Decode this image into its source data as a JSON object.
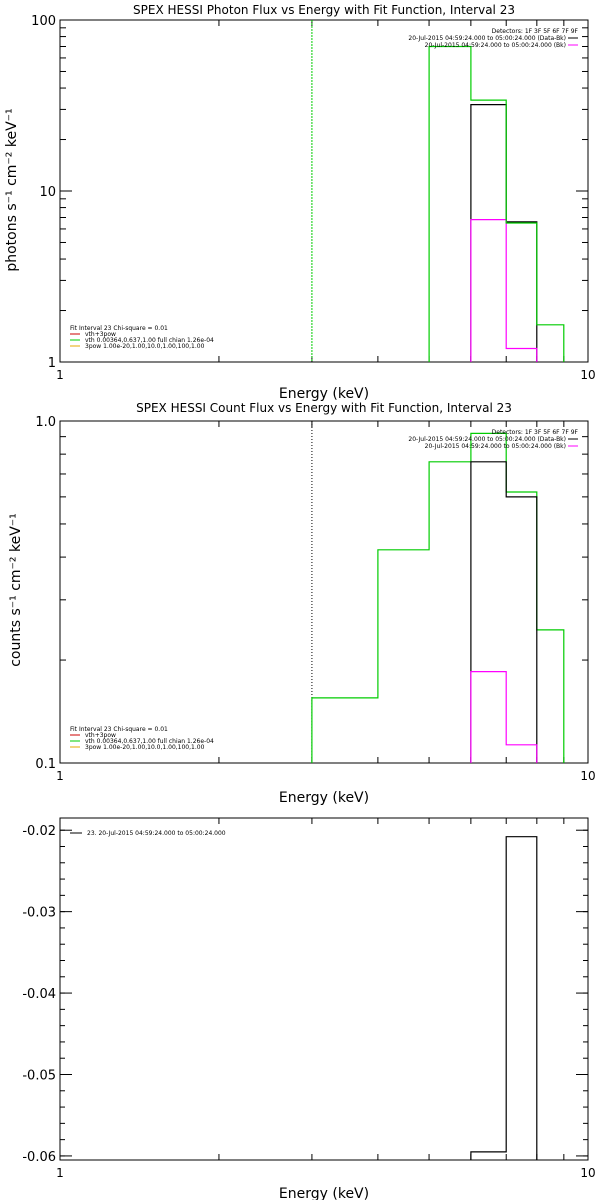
{
  "chart_data": [
    {
      "type": "line",
      "step": true,
      "title": "SPEX HESSI Photon Flux vs Energy with Fit Function, Interval 23",
      "xlabel": "Energy (keV)",
      "ylabel": "photons s⁻¹ cm⁻² keV⁻¹",
      "xscale": "log",
      "yscale": "log",
      "xlim": [
        1,
        10
      ],
      "ylim": [
        1,
        100
      ],
      "xticks": [
        {
          "v": 1,
          "label": "1"
        },
        {
          "v": 10,
          "label": "10"
        }
      ],
      "yticks": [
        {
          "v": 1,
          "label": "1"
        },
        {
          "v": 10,
          "label": "10"
        },
        {
          "v": 100,
          "label": "100"
        }
      ],
      "vline": {
        "x": 3.0,
        "color": "#00cc00",
        "style": "dashed"
      },
      "series": [
        {
          "color": "#000000",
          "x": [
            6.0,
            7.0,
            8.0
          ],
          "y": [
            32,
            6.6,
            1
          ]
        },
        {
          "color": "#ff00ff",
          "x": [
            6.0,
            7.0,
            8.0
          ],
          "y": [
            6.8,
            1.2,
            1
          ]
        },
        {
          "color": "#00cc00",
          "x": [
            5.0,
            6.0,
            7.0,
            8.0,
            9.0
          ],
          "y": [
            70,
            34,
            6.5,
            1.65,
            1
          ]
        }
      ],
      "legend_top": {
        "title": "Detectors: 1F 3F 5F 6F 7F 9F",
        "entries": [
          {
            "text": "20-Jul-2015 04:59:24.000 to 05:00:24.000 (Data-Bk)",
            "color": "#000000"
          },
          {
            "text": "20-Jul-2015 04:59:24.000 to 05:00:24.000 (Bk)",
            "color": "#ff00ff"
          }
        ]
      },
      "legend_bottom": {
        "title": "Fit Interval 23   Chi-square = 0.01",
        "entries": [
          {
            "text": "vth+3pow",
            "color": "#cc0000"
          },
          {
            "text": "vth 0.00364,0.637,1.00  full chian 1.26e-04",
            "color": "#00cc00"
          },
          {
            "text": "3pow 1.00e-20,1.00,10.0,1.00,100,1.00",
            "color": "#e6a800"
          }
        ]
      }
    },
    {
      "type": "line",
      "step": true,
      "title": "SPEX HESSI Count Flux vs Energy with Fit Function, Interval 23",
      "xlabel": "Energy (keV)",
      "ylabel": "counts s⁻¹ cm⁻² keV⁻¹",
      "xscale": "log",
      "yscale": "log",
      "xlim": [
        1,
        10
      ],
      "ylim": [
        0.1,
        1.0
      ],
      "xticks": [
        {
          "v": 1,
          "label": "1"
        },
        {
          "v": 10,
          "label": "10"
        }
      ],
      "yticks": [
        {
          "v": 0.1,
          "label": "0.1"
        },
        {
          "v": 1.0,
          "label": "1.0"
        }
      ],
      "vline": {
        "x": 3.0,
        "color": "#000000",
        "style": "dotted"
      },
      "series": [
        {
          "color": "#00cc00",
          "x": [
            3.0,
            4.0,
            5.0,
            6.0,
            7.0,
            8.0,
            9.0
          ],
          "y": [
            0.155,
            0.42,
            0.76,
            0.92,
            0.62,
            0.245,
            0.1
          ]
        },
        {
          "color": "#000000",
          "x": [
            6.0,
            7.0,
            8.0
          ],
          "y": [
            0.76,
            0.6,
            0.1
          ]
        },
        {
          "color": "#ff00ff",
          "x": [
            6.0,
            7.0,
            8.0
          ],
          "y": [
            0.185,
            0.113,
            0.1
          ]
        }
      ],
      "legend_top": {
        "title": "Detectors: 1F 3F 5F 6F 7F 9F",
        "entries": [
          {
            "text": "20-Jul-2015 04:59:24.000 to 05:00:24.000 (Data-Bk)",
            "color": "#000000"
          },
          {
            "text": "20-Jul-2015 04:59:24.000 to 05:00:24.000 (Bk)",
            "color": "#ff00ff"
          }
        ]
      },
      "legend_bottom": {
        "title": "Fit Interval 23   Chi-square = 0.01",
        "entries": [
          {
            "text": "vth+3pow",
            "color": "#cc0000"
          },
          {
            "text": "vth 0.00364,0.637,1.00  full chian 1.26e-04",
            "color": "#00cc00"
          },
          {
            "text": "3pow 1.00e-20,1.00,10.0,1.00,100,1.00",
            "color": "#e6a800"
          }
        ]
      }
    },
    {
      "type": "line",
      "step": true,
      "title": "",
      "xlabel": "Energy (keV)",
      "ylabel": "",
      "xscale": "log",
      "yscale": "linear",
      "xlim": [
        1,
        10
      ],
      "ylim": [
        -0.0605,
        -0.0185
      ],
      "xticks": [
        {
          "v": 1,
          "label": "1"
        },
        {
          "v": 10,
          "label": "10"
        }
      ],
      "yticks": [
        {
          "v": -0.02,
          "label": "-0.02"
        },
        {
          "v": -0.03,
          "label": "-0.03"
        },
        {
          "v": -0.04,
          "label": "-0.04"
        },
        {
          "v": -0.05,
          "label": "-0.05"
        },
        {
          "v": -0.06,
          "label": "-0.06"
        }
      ],
      "series": [
        {
          "color": "#000000",
          "x": [
            6.0,
            7.0,
            8.0
          ],
          "y": [
            -0.0595,
            -0.0208,
            -0.0605
          ]
        }
      ],
      "legend_top_left": {
        "entries": [
          {
            "text": "23. 20-Jul-2015 04:59:24.000 to 05:00:24.000",
            "color": "#000000"
          }
        ]
      }
    }
  ]
}
